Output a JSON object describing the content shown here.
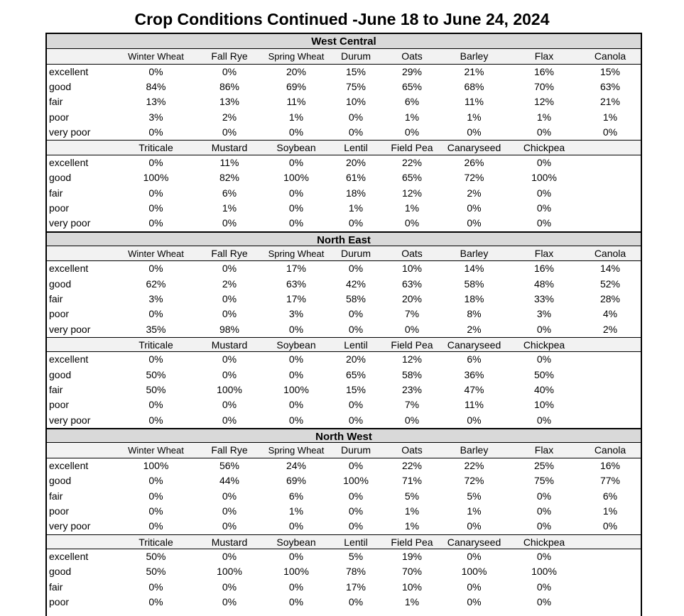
{
  "title": "Crop Conditions Continued -June 18 to June 24, 2024",
  "sections": [
    {
      "name": "West Central",
      "tables": [
        {
          "columns": [
            "Winter Wheat",
            "Fall Rye",
            "Spring Wheat",
            "Durum",
            "Oats",
            "Barley",
            "Flax",
            "Canola"
          ],
          "rows": [
            {
              "label": "excellent",
              "values": [
                "0%",
                "0%",
                "20%",
                "15%",
                "29%",
                "21%",
                "16%",
                "15%"
              ]
            },
            {
              "label": "good",
              "values": [
                "84%",
                "86%",
                "69%",
                "75%",
                "65%",
                "68%",
                "70%",
                "63%"
              ]
            },
            {
              "label": "fair",
              "values": [
                "13%",
                "13%",
                "11%",
                "10%",
                "6%",
                "11%",
                "12%",
                "21%"
              ]
            },
            {
              "label": "poor",
              "values": [
                "3%",
                "2%",
                "1%",
                "0%",
                "1%",
                "1%",
                "1%",
                "1%"
              ]
            },
            {
              "label": "very poor",
              "values": [
                "0%",
                "0%",
                "0%",
                "0%",
                "0%",
                "0%",
                "0%",
                "0%"
              ]
            }
          ]
        },
        {
          "columns": [
            "Triticale",
            "Mustard",
            "Soybean",
            "Lentil",
            "Field Pea",
            "Canaryseed",
            "Chickpea"
          ],
          "rows": [
            {
              "label": "excellent",
              "values": [
                "0%",
                "11%",
                "0%",
                "20%",
                "22%",
                "26%",
                "0%"
              ]
            },
            {
              "label": "good",
              "values": [
                "100%",
                "82%",
                "100%",
                "61%",
                "65%",
                "72%",
                "100%"
              ]
            },
            {
              "label": "fair",
              "values": [
                "0%",
                "6%",
                "0%",
                "18%",
                "12%",
                "2%",
                "0%"
              ]
            },
            {
              "label": "poor",
              "values": [
                "0%",
                "1%",
                "0%",
                "1%",
                "1%",
                "0%",
                "0%"
              ]
            },
            {
              "label": "very poor",
              "values": [
                "0%",
                "0%",
                "0%",
                "0%",
                "0%",
                "0%",
                "0%"
              ]
            }
          ]
        }
      ]
    },
    {
      "name": "North East",
      "tables": [
        {
          "columns": [
            "Winter Wheat",
            "Fall Rye",
            "Spring Wheat",
            "Durum",
            "Oats",
            "Barley",
            "Flax",
            "Canola"
          ],
          "rows": [
            {
              "label": "excellent",
              "values": [
                "0%",
                "0%",
                "17%",
                "0%",
                "10%",
                "14%",
                "16%",
                "14%"
              ]
            },
            {
              "label": "good",
              "values": [
                "62%",
                "2%",
                "63%",
                "42%",
                "63%",
                "58%",
                "48%",
                "52%"
              ]
            },
            {
              "label": "fair",
              "values": [
                "3%",
                "0%",
                "17%",
                "58%",
                "20%",
                "18%",
                "33%",
                "28%"
              ]
            },
            {
              "label": "poor",
              "values": [
                "0%",
                "0%",
                "3%",
                "0%",
                "7%",
                "8%",
                "3%",
                "4%"
              ]
            },
            {
              "label": "very poor",
              "values": [
                "35%",
                "98%",
                "0%",
                "0%",
                "0%",
                "2%",
                "0%",
                "2%"
              ]
            }
          ]
        },
        {
          "columns": [
            "Triticale",
            "Mustard",
            "Soybean",
            "Lentil",
            "Field Pea",
            "Canaryseed",
            "Chickpea"
          ],
          "rows": [
            {
              "label": "excellent",
              "values": [
                "0%",
                "0%",
                "0%",
                "20%",
                "12%",
                "6%",
                "0%"
              ]
            },
            {
              "label": "good",
              "values": [
                "50%",
                "0%",
                "0%",
                "65%",
                "58%",
                "36%",
                "50%"
              ]
            },
            {
              "label": "fair",
              "values": [
                "50%",
                "100%",
                "100%",
                "15%",
                "23%",
                "47%",
                "40%"
              ]
            },
            {
              "label": "poor",
              "values": [
                "0%",
                "0%",
                "0%",
                "0%",
                "7%",
                "11%",
                "10%"
              ]
            },
            {
              "label": "very poor",
              "values": [
                "0%",
                "0%",
                "0%",
                "0%",
                "0%",
                "0%",
                "0%"
              ]
            }
          ]
        }
      ]
    },
    {
      "name": "North West",
      "tables": [
        {
          "columns": [
            "Winter Wheat",
            "Fall Rye",
            "Spring Wheat",
            "Durum",
            "Oats",
            "Barley",
            "Flax",
            "Canola"
          ],
          "rows": [
            {
              "label": "excellent",
              "values": [
                "100%",
                "56%",
                "24%",
                "0%",
                "22%",
                "22%",
                "25%",
                "16%"
              ]
            },
            {
              "label": "good",
              "values": [
                "0%",
                "44%",
                "69%",
                "100%",
                "71%",
                "72%",
                "75%",
                "77%"
              ]
            },
            {
              "label": "fair",
              "values": [
                "0%",
                "0%",
                "6%",
                "0%",
                "5%",
                "5%",
                "0%",
                "6%"
              ]
            },
            {
              "label": "poor",
              "values": [
                "0%",
                "0%",
                "1%",
                "0%",
                "1%",
                "1%",
                "0%",
                "1%"
              ]
            },
            {
              "label": "very poor",
              "values": [
                "0%",
                "0%",
                "0%",
                "0%",
                "1%",
                "0%",
                "0%",
                "0%"
              ]
            }
          ]
        },
        {
          "columns": [
            "Triticale",
            "Mustard",
            "Soybean",
            "Lentil",
            "Field Pea",
            "Canaryseed",
            "Chickpea"
          ],
          "rows": [
            {
              "label": "excellent",
              "values": [
                "50%",
                "0%",
                "0%",
                "5%",
                "19%",
                "0%",
                "0%"
              ]
            },
            {
              "label": "good",
              "values": [
                "50%",
                "100%",
                "100%",
                "78%",
                "70%",
                "100%",
                "100%"
              ]
            },
            {
              "label": "fair",
              "values": [
                "0%",
                "0%",
                "0%",
                "17%",
                "10%",
                "0%",
                "0%"
              ]
            },
            {
              "label": "poor",
              "values": [
                "0%",
                "0%",
                "0%",
                "0%",
                "1%",
                "0%",
                "0%"
              ]
            }
          ]
        }
      ]
    }
  ]
}
